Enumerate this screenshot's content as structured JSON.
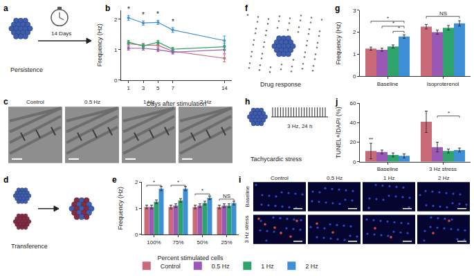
{
  "panel_labels": [
    "a",
    "b",
    "c",
    "d",
    "e",
    "f",
    "g",
    "h",
    "i",
    "j"
  ],
  "schematics": [
    {
      "texts": [
        "14 Days",
        "Persistence"
      ]
    },
    {
      "texts": [
        "Transference"
      ]
    },
    {
      "texts": [
        "Drug response"
      ]
    },
    {
      "texts": [
        "3 Hz, 24 h",
        "Tachycardic stress"
      ]
    }
  ],
  "micrographs": [
    {
      "labels": [
        "Control",
        "0.5 Hz",
        "1 Hz",
        "2 Hz"
      ]
    },
    {
      "labels": [
        "Control",
        "0.5 Hz",
        "1 Hz",
        "2 Hz"
      ],
      "rows": [
        "Baseline",
        "3 Hz stress"
      ]
    }
  ],
  "chart_data": [
    {
      "type": "line",
      "x": [
        1,
        3,
        5,
        7,
        14
      ],
      "xlim": [
        0,
        15
      ],
      "xticks": [
        1,
        3,
        5,
        7,
        14
      ],
      "ylim": [
        0,
        2.3
      ],
      "yticks": [
        0,
        1,
        2
      ],
      "grid": false,
      "marker": "circle",
      "x_label": "Days after stimulation",
      "y_label": "Frequency (Hz)",
      "series": [
        {
          "name": "Control",
          "color": "#c96a78",
          "values": [
            1.2,
            1.15,
            1.15,
            0.95,
            0.72
          ],
          "errors": [
            0.06,
            0.06,
            0.06,
            0.06,
            0.12
          ]
        },
        {
          "name": "0.5 Hz",
          "color": "#9b59b6",
          "values": [
            1.05,
            1.05,
            1.0,
            0.92,
            1.0
          ],
          "errors": [
            0.06,
            0.06,
            0.06,
            0.06,
            0.12
          ]
        },
        {
          "name": "1 Hz",
          "color": "#2ea36b",
          "values": [
            1.25,
            1.12,
            1.25,
            1.02,
            1.1
          ],
          "errors": [
            0.06,
            0.06,
            0.06,
            0.06,
            0.12
          ]
        },
        {
          "name": "2 Hz",
          "color": "#3d8fd6",
          "values": [
            2.05,
            1.88,
            1.9,
            1.65,
            1.3
          ],
          "errors": [
            0.08,
            0.07,
            0.07,
            0.08,
            0.15
          ]
        }
      ],
      "annotations": [
        {
          "text": "*",
          "x": 1,
          "y": 2.15
        },
        {
          "text": "*",
          "x": 3,
          "y": 1.97
        },
        {
          "text": "*",
          "x": 5,
          "y": 1.99
        },
        {
          "text": "*",
          "x": 7,
          "y": 1.75
        }
      ]
    },
    {
      "type": "bar",
      "categories": [
        "100%",
        "75%",
        "50%",
        "25%"
      ],
      "ylim": [
        0,
        2
      ],
      "yticks": [
        0,
        1,
        2
      ],
      "grid": false,
      "legend": "bottom",
      "x_label": "Percent stimulated cells",
      "y_label": "Frequency (Hz)",
      "series": [
        {
          "name": "Control",
          "color": "#c96a78",
          "values": [
            1.05,
            1.05,
            1.05,
            1.05
          ],
          "errors": [
            0.07,
            0.07,
            0.07,
            0.07
          ]
        },
        {
          "name": "0.5 Hz",
          "color": "#9b59b6",
          "values": [
            1.05,
            1.1,
            1.1,
            1.1
          ],
          "errors": [
            0.07,
            0.07,
            0.07,
            0.07
          ]
        },
        {
          "name": "1 Hz",
          "color": "#2ea36b",
          "values": [
            1.25,
            1.3,
            1.2,
            1.1
          ],
          "errors": [
            0.07,
            0.07,
            0.07,
            0.07
          ]
        },
        {
          "name": "2 Hz",
          "color": "#3d8fd6",
          "values": [
            1.75,
            1.75,
            1.4,
            1.2
          ],
          "errors": [
            0.08,
            0.08,
            0.07,
            0.07
          ]
        }
      ],
      "significance": [
        {
          "category": "100%",
          "from": "Control",
          "to": "2 Hz",
          "y": 1.88,
          "text": "*"
        },
        {
          "category": "75%",
          "from": "Control",
          "to": "2 Hz",
          "y": 1.88,
          "text": "*"
        },
        {
          "category": "50%",
          "from": "Control",
          "to": "2 Hz",
          "y": 1.55,
          "text": "*"
        },
        {
          "category": "25%",
          "from": "Control",
          "to": "2 Hz",
          "y": 1.35,
          "text": "NS"
        }
      ]
    },
    {
      "type": "bar",
      "categories": [
        "Baseline",
        "Isoproterenol"
      ],
      "ylim": [
        0,
        3
      ],
      "yticks": [
        0,
        1,
        2,
        3
      ],
      "grid": false,
      "y_label": "Frequency (Hz)",
      "series": [
        {
          "name": "Control",
          "color": "#c96a78",
          "values": [
            1.25,
            2.25
          ],
          "errors": [
            0.07,
            0.1
          ]
        },
        {
          "name": "0.5 Hz",
          "color": "#9b59b6",
          "values": [
            1.2,
            2.0
          ],
          "errors": [
            0.07,
            0.1
          ]
        },
        {
          "name": "1 Hz",
          "color": "#2ea36b",
          "values": [
            1.35,
            2.2
          ],
          "errors": [
            0.07,
            0.1
          ]
        },
        {
          "name": "2 Hz",
          "color": "#3d8fd6",
          "values": [
            1.8,
            2.4
          ],
          "errors": [
            0.08,
            0.12
          ]
        }
      ],
      "significance": [
        {
          "category": "Baseline",
          "from": "Control",
          "to": "2 Hz",
          "y": 2.5,
          "text": "*"
        },
        {
          "category": "Baseline",
          "from": "0.5 Hz",
          "to": "2 Hz",
          "y": 2.27,
          "text": "*"
        },
        {
          "category": "Baseline",
          "from": "1 Hz",
          "to": "2 Hz",
          "y": 2.04,
          "text": "*"
        },
        {
          "category": "Isoproterenol",
          "from": "Control",
          "to": "2 Hz",
          "y": 2.72,
          "text": "NS"
        }
      ]
    },
    {
      "type": "bar",
      "categories": [
        "Baseline",
        "3 Hz stress"
      ],
      "ylim": [
        0,
        60
      ],
      "yticks": [
        0,
        20,
        40,
        60
      ],
      "grid": false,
      "y_label": "TUNEL+/DAPI (%)",
      "series": [
        {
          "name": "Control",
          "color": "#c96a78",
          "values": [
            11,
            41
          ],
          "errors": [
            8,
            11
          ]
        },
        {
          "name": "0.5 Hz",
          "color": "#9b59b6",
          "values": [
            10,
            15
          ],
          "errors": [
            2,
            5
          ]
        },
        {
          "name": "1 Hz",
          "color": "#2ea36b",
          "values": [
            7,
            11
          ],
          "errors": [
            2,
            2
          ]
        },
        {
          "name": "2 Hz",
          "color": "#3d8fd6",
          "values": [
            6,
            12
          ],
          "errors": [
            2,
            2
          ]
        }
      ],
      "significance": [
        {
          "category": "Baseline",
          "series": "Control",
          "y": 20,
          "text": "**"
        },
        {
          "category": "3 Hz stress",
          "from": "0.5 Hz",
          "to": "2 Hz",
          "y": 47,
          "text": "*"
        }
      ]
    }
  ]
}
